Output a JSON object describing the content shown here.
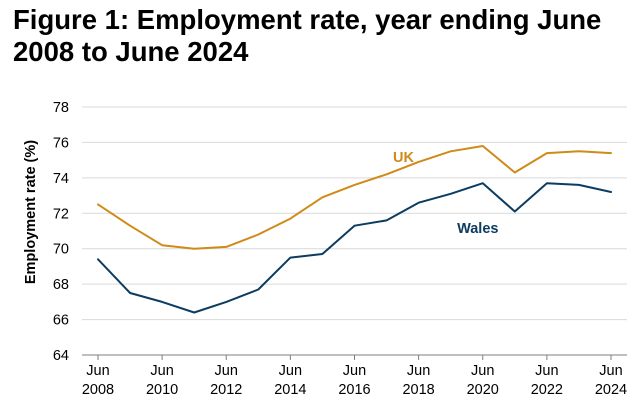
{
  "title": "Figure 1: Employment rate, year ending June 2008 to June 2024",
  "chart_data": {
    "type": "line",
    "title": "Figure 1: Employment rate, year ending June 2008 to June 2024",
    "xlabel": "",
    "ylabel": "Employment rate (%)",
    "x": [
      2008,
      2009,
      2010,
      2011,
      2012,
      2013,
      2014,
      2015,
      2016,
      2017,
      2018,
      2019,
      2020,
      2021,
      2022,
      2023,
      2024
    ],
    "xticks": [
      {
        "year": 2008,
        "line1": "Jun",
        "line2": "2008"
      },
      {
        "year": 2010,
        "line1": "Jun",
        "line2": "2010"
      },
      {
        "year": 2012,
        "line1": "Jun",
        "line2": "2012"
      },
      {
        "year": 2014,
        "line1": "Jun",
        "line2": "2014"
      },
      {
        "year": 2016,
        "line1": "Jun",
        "line2": "2016"
      },
      {
        "year": 2018,
        "line1": "Jun",
        "line2": "2018"
      },
      {
        "year": 2020,
        "line1": "Jun",
        "line2": "2020"
      },
      {
        "year": 2022,
        "line1": "Jun",
        "line2": "2022"
      },
      {
        "year": 2024,
        "line1": "Jun",
        "line2": "2024"
      }
    ],
    "ylim": [
      64,
      78
    ],
    "yticks": [
      64,
      66,
      68,
      70,
      72,
      74,
      76,
      78
    ],
    "grid": "horizontal",
    "series": [
      {
        "name": "UK",
        "color": "#d08a18",
        "values": [
          72.5,
          71.3,
          70.2,
          70.0,
          70.1,
          70.8,
          71.7,
          72.9,
          73.6,
          74.2,
          74.9,
          75.5,
          75.8,
          74.3,
          75.4,
          75.5,
          75.4
        ]
      },
      {
        "name": "Wales",
        "color": "#0c3c60",
        "values": [
          69.4,
          67.5,
          67.0,
          66.4,
          67.0,
          67.7,
          69.5,
          69.7,
          71.3,
          71.6,
          72.6,
          73.1,
          73.7,
          72.1,
          73.7,
          73.6,
          73.2
        ]
      }
    ],
    "series_label_positions": [
      {
        "series": "UK",
        "x": 2017.2,
        "y": 74.9
      },
      {
        "series": "Wales",
        "x": 2019.2,
        "y": 70.9
      }
    ]
  }
}
